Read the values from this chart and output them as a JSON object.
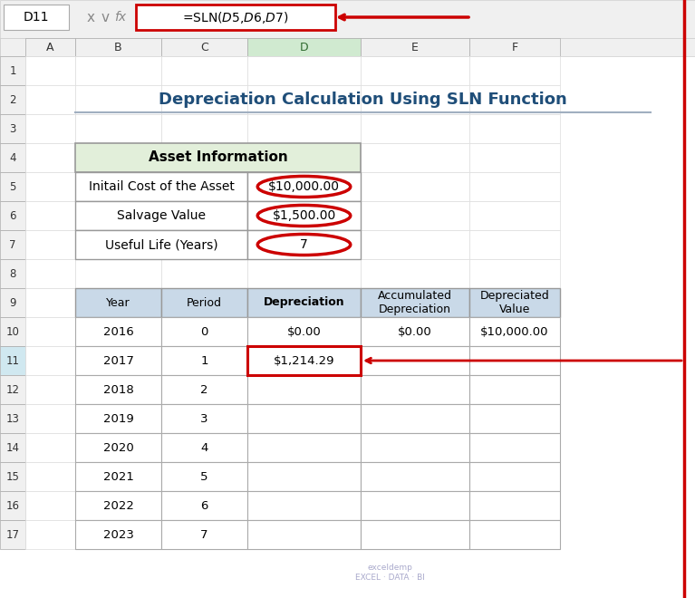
{
  "title": "Depreciation Calculation Using SLN Function",
  "formula_bar_cell": "D11",
  "formula_bar_text": "=SLN($D$5,$D$6,$D$7)",
  "col_headers": [
    "A",
    "B",
    "C",
    "D",
    "E",
    "F"
  ],
  "row_numbers": [
    "1",
    "2",
    "3",
    "4",
    "5",
    "6",
    "7",
    "8",
    "9",
    "10",
    "11",
    "12",
    "13",
    "14",
    "15",
    "16",
    "17"
  ],
  "asset_info_header": "Asset Information",
  "asset_rows": [
    [
      "Initail Cost of the Asset",
      "$10,000.00"
    ],
    [
      "Salvage Value",
      "$1,500.00"
    ],
    [
      "Useful Life (Years)",
      "7"
    ]
  ],
  "table_headers": [
    "Year",
    "Period",
    "Depreciation",
    "Accumulated\nDepreciation",
    "Depreciated\nValue"
  ],
  "table_data": [
    [
      "2016",
      "0",
      "$0.00",
      "$0.00",
      "$10,000.00"
    ],
    [
      "2017",
      "1",
      "$1,214.29",
      "",
      ""
    ],
    [
      "2018",
      "2",
      "",
      "",
      ""
    ],
    [
      "2019",
      "3",
      "",
      "",
      ""
    ],
    [
      "2020",
      "4",
      "",
      "",
      ""
    ],
    [
      "2021",
      "5",
      "",
      "",
      ""
    ],
    [
      "2022",
      "6",
      "",
      "",
      ""
    ],
    [
      "2023",
      "7",
      "",
      "",
      ""
    ]
  ],
  "bg_color": "#ffffff",
  "formula_box_color": "#ffffff",
  "formula_box_border": "#cc0000",
  "formula_text_color": "#000000",
  "title_color": "#1f4e79",
  "title_underline_color": "#a0afc0",
  "asset_header_bg": "#e2efda",
  "asset_cell_bg": "#ffffff",
  "table_header_bg": "#c9d9e8",
  "table_cell_bg": "#ffffff",
  "cell_border_color": "#aaaaaa",
  "highlight_cell_border": "#cc0000",
  "excel_toolbar_bg": "#f0f0f0",
  "excel_cell_ref_bg": "#ffffff",
  "red_color": "#cc0000",
  "ellipse_color": "#cc0000",
  "watermark_text": "exceldemp\nEXCEL · DATA · BI"
}
